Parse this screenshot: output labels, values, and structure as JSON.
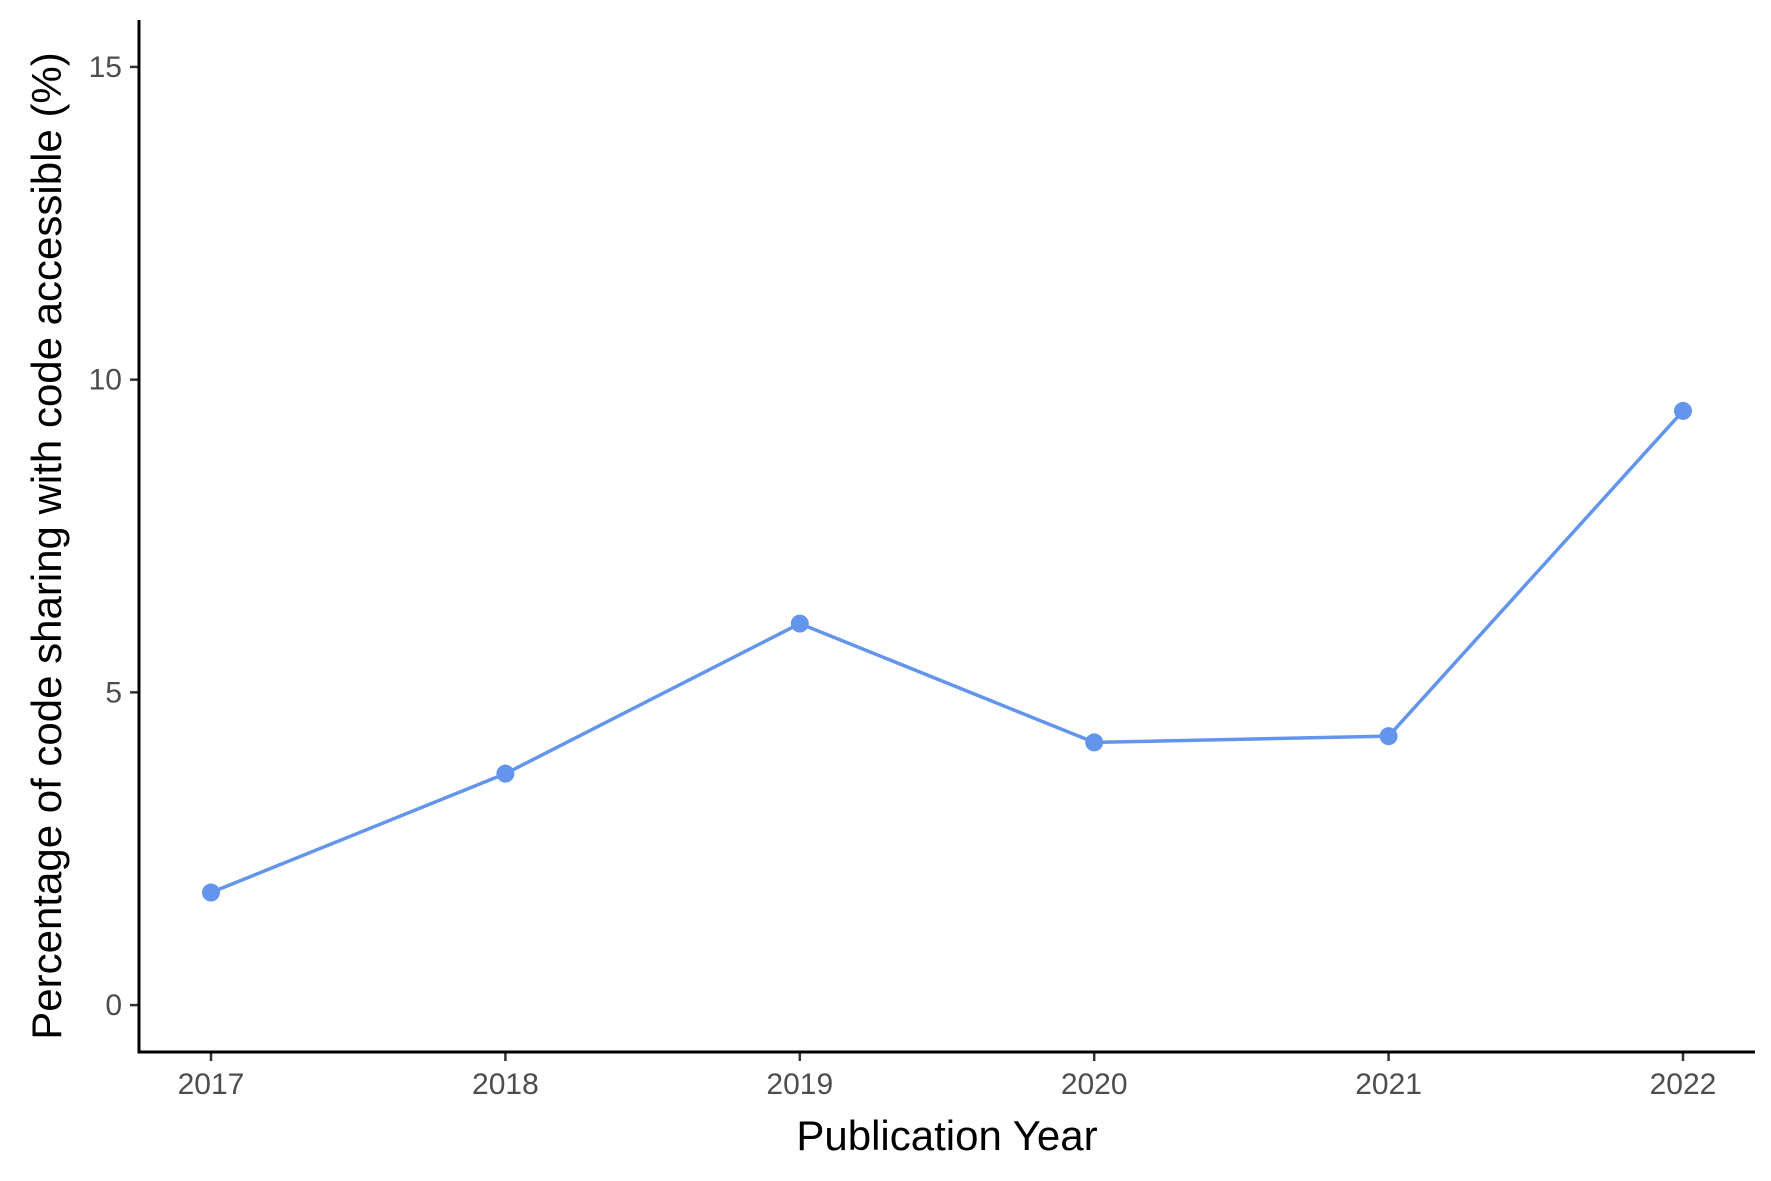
{
  "chart_data": {
    "type": "line",
    "title": "",
    "xlabel": "Publication Year",
    "ylabel": "Percentage of code sharing with code accessible (%)",
    "x": [
      "2017",
      "2018",
      "2019",
      "2020",
      "2021",
      "2022"
    ],
    "series": [
      {
        "values": [
          1.8,
          3.7,
          6.1,
          4.2,
          4.3,
          9.5
        ],
        "color": "#6495ED"
      }
    ],
    "yticks": [
      0,
      5,
      10,
      15
    ],
    "ytick_labels": [
      "0",
      "5",
      "10",
      "15"
    ],
    "ylim": [
      -0.75,
      15.75
    ],
    "grid": false,
    "legend": "none"
  }
}
